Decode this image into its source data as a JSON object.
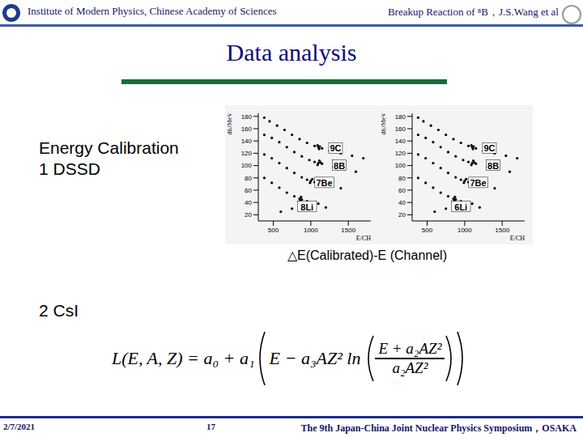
{
  "header": {
    "left": "Institute of Modern Physics, Chinese Academy of Sciences",
    "right": "Breakup Reaction of ⁸B，J.S.Wang et al"
  },
  "title": "Data analysis",
  "section1": {
    "lines": [
      "Energy Calibration",
      "1 DSSD"
    ]
  },
  "caption": "△E(Calibrated)-E (Channel)",
  "section2": "2 CsI",
  "formula": {
    "lhs": "L(E, A, Z) = ",
    "head": "a₀ + a₁",
    "inner": "E − a₃AZ² ln",
    "numerator": "E + a₂AZ²",
    "denominator": "a₂AZ²"
  },
  "footer": {
    "date": "2/7/2021",
    "page": "17",
    "event": "The 9th Japan-China Joint Nuclear Physics Symposium，OSAKA"
  },
  "chart_data": [
    {
      "type": "scatter",
      "xlabel": "E/CH",
      "ylabel": "dE/MeV",
      "color": "#000000",
      "xlim": [
        300,
        1800
      ],
      "ylim": [
        10,
        185
      ],
      "xticks": [
        500,
        1000,
        1500
      ],
      "yticks": [
        20,
        40,
        60,
        80,
        100,
        120,
        140,
        160,
        180
      ],
      "x": [
        380,
        450,
        550,
        650,
        750,
        850,
        950,
        1050,
        1100,
        1150,
        1250,
        1400,
        1550,
        1700,
        380,
        480,
        580,
        680,
        780,
        880,
        980,
        1050,
        1100,
        1150,
        1300,
        1450,
        1600,
        380,
        480,
        580,
        680,
        780,
        880,
        950,
        1000,
        1050,
        1200,
        1400,
        380,
        480,
        580,
        680,
        780,
        850,
        880,
        950,
        1100,
        1090,
        1110,
        1120,
        1090,
        1115,
        1130,
        990,
        1020,
        860,
        870,
        600,
        750,
        900,
        1200
      ],
      "y": [
        178,
        172,
        165,
        158,
        150,
        143,
        137,
        132,
        130,
        128,
        124,
        120,
        116,
        112,
        150,
        145,
        138,
        130,
        122,
        115,
        109,
        106,
        104,
        103,
        98,
        94,
        90,
        118,
        112,
        104,
        96,
        88,
        81,
        77,
        75,
        73,
        68,
        63,
        80,
        72,
        64,
        56,
        50,
        46,
        45,
        42,
        38,
        133,
        127,
        131,
        101,
        108,
        105,
        72,
        78,
        43,
        49,
        25,
        30,
        28,
        32
      ],
      "annotations": [
        {
          "text": "9C",
          "x": 1330,
          "y": 128
        },
        {
          "text": "8B",
          "x": 1380,
          "y": 100
        },
        {
          "text": "7Be",
          "x": 1180,
          "y": 72
        },
        {
          "text": "8Li",
          "x": 950,
          "y": 33
        }
      ]
    },
    {
      "type": "scatter",
      "xlabel": "E/CH",
      "ylabel": "dE/MeV",
      "color": "#000000",
      "xlim": [
        300,
        1800
      ],
      "ylim": [
        10,
        185
      ],
      "xticks": [
        500,
        1000,
        1500
      ],
      "yticks": [
        20,
        40,
        60,
        80,
        100,
        120,
        140,
        160,
        180
      ],
      "x": [
        380,
        450,
        550,
        650,
        750,
        850,
        950,
        1050,
        1100,
        1150,
        1250,
        1400,
        1550,
        1700,
        380,
        480,
        580,
        680,
        780,
        880,
        980,
        1050,
        1100,
        1150,
        1300,
        1450,
        1600,
        380,
        480,
        580,
        680,
        780,
        880,
        950,
        1000,
        1050,
        1200,
        1400,
        380,
        480,
        580,
        680,
        780,
        850,
        880,
        950,
        1100,
        1090,
        1110,
        1120,
        1090,
        1115,
        1130,
        990,
        1020,
        860,
        870,
        600,
        750,
        900,
        1200
      ],
      "y": [
        178,
        172,
        165,
        158,
        150,
        143,
        137,
        132,
        130,
        128,
        124,
        120,
        116,
        112,
        150,
        145,
        138,
        130,
        122,
        115,
        109,
        106,
        104,
        103,
        98,
        94,
        90,
        118,
        112,
        104,
        96,
        88,
        81,
        77,
        75,
        73,
        68,
        63,
        80,
        72,
        64,
        56,
        50,
        46,
        45,
        42,
        38,
        133,
        127,
        131,
        101,
        108,
        105,
        72,
        78,
        43,
        49,
        25,
        30,
        28,
        32
      ],
      "annotations": [
        {
          "text": "9C",
          "x": 1330,
          "y": 128
        },
        {
          "text": "8B",
          "x": 1380,
          "y": 100
        },
        {
          "text": "7Be",
          "x": 1180,
          "y": 72
        },
        {
          "text": "6Li",
          "x": 950,
          "y": 33
        }
      ]
    }
  ]
}
